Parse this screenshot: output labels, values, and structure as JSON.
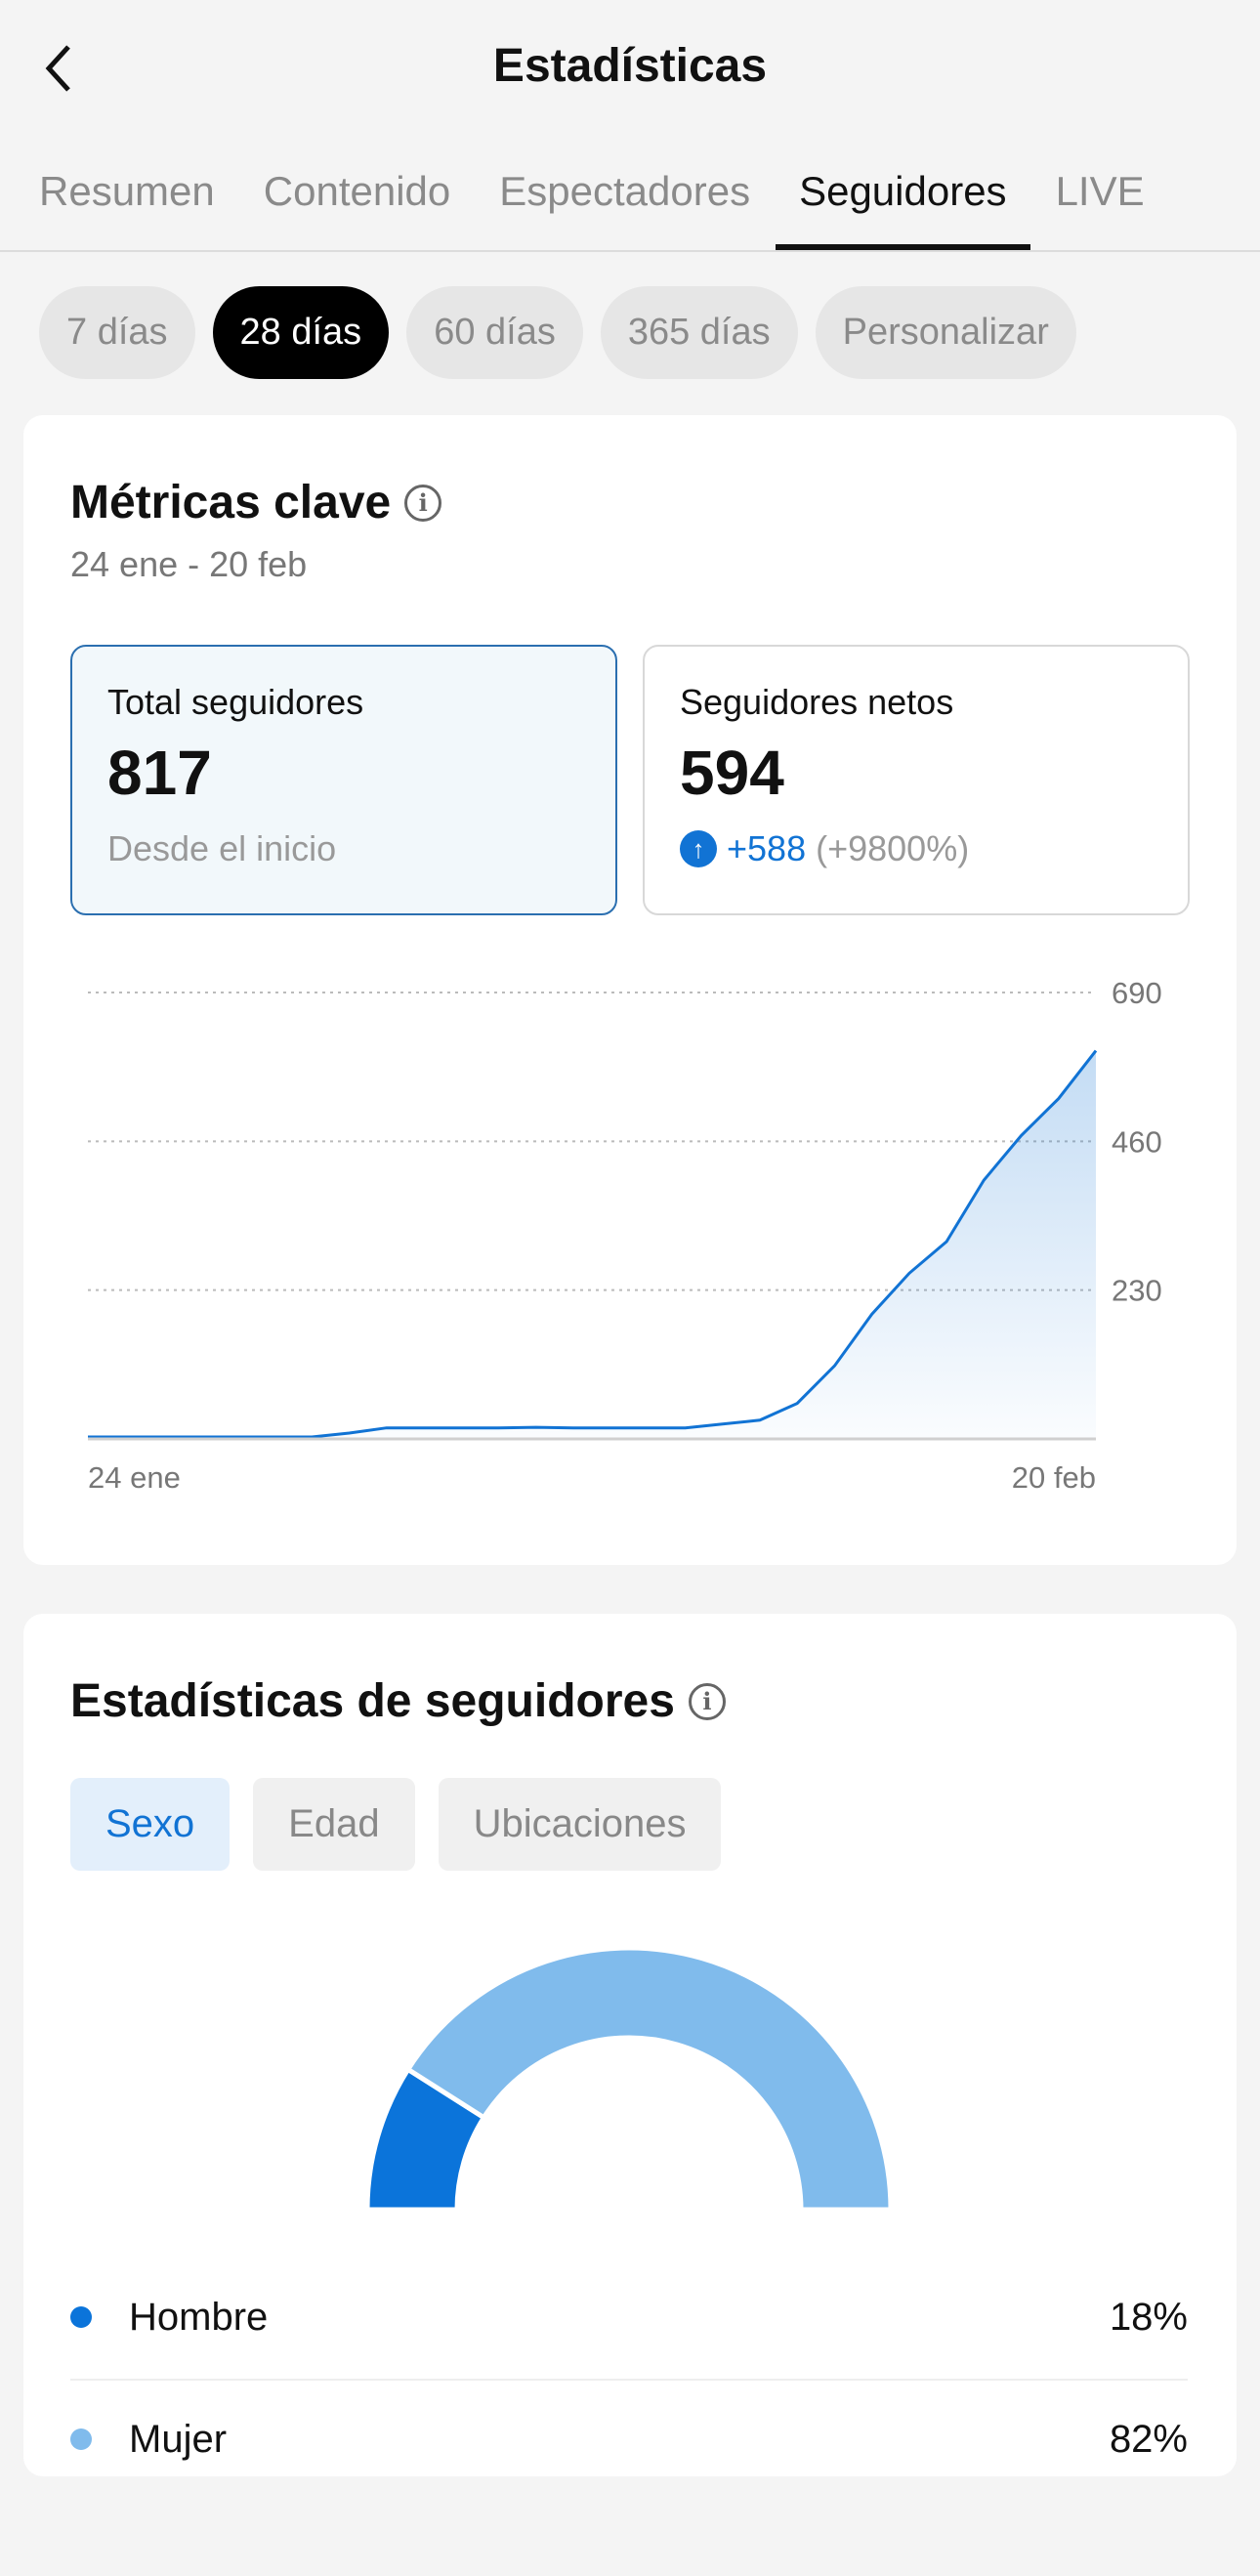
{
  "header": {
    "title": "Estadísticas"
  },
  "tabs": [
    {
      "label": "Resumen"
    },
    {
      "label": "Contenido"
    },
    {
      "label": "Espectadores"
    },
    {
      "label": "Seguidores"
    },
    {
      "label": "LIVE"
    }
  ],
  "range_chips": [
    {
      "label": "7 días"
    },
    {
      "label": "28 días"
    },
    {
      "label": "60 días"
    },
    {
      "label": "365 días"
    },
    {
      "label": "Personalizar"
    }
  ],
  "key_metrics": {
    "title": "Métricas clave",
    "date_range": "24 ene - 20 feb",
    "total": {
      "label": "Total seguidores",
      "value": "817",
      "sub": "Desde el inicio"
    },
    "net": {
      "label": "Seguidores netos",
      "value": "594",
      "delta": "+588",
      "delta_pct": "(+9800%)"
    }
  },
  "chart_data": {
    "type": "area",
    "title": "",
    "xlabel": "",
    "ylabel": "",
    "x_tick_labels": [
      "24 ene",
      "20 feb"
    ],
    "y_ticks": [
      230,
      460,
      690
    ],
    "ylim": [
      0,
      690
    ],
    "values": [
      3,
      3,
      3,
      3,
      3,
      3,
      3,
      9,
      17,
      17,
      17,
      17,
      18,
      17,
      17,
      17,
      17,
      23,
      29,
      55,
      113,
      193,
      256,
      305,
      400,
      469,
      526,
      600
    ],
    "grid": true,
    "color": "#1173d4"
  },
  "follower_stats": {
    "title": "Estadísticas de seguidores",
    "tabs": [
      {
        "label": "Sexo"
      },
      {
        "label": "Edad"
      },
      {
        "label": "Ubicaciones"
      }
    ],
    "gender": [
      {
        "label": "Hombre",
        "pct": "18%",
        "value": 18,
        "color": "#0b74da"
      },
      {
        "label": "Mujer",
        "pct": "82%",
        "value": 82,
        "color": "#80bbec"
      }
    ]
  }
}
